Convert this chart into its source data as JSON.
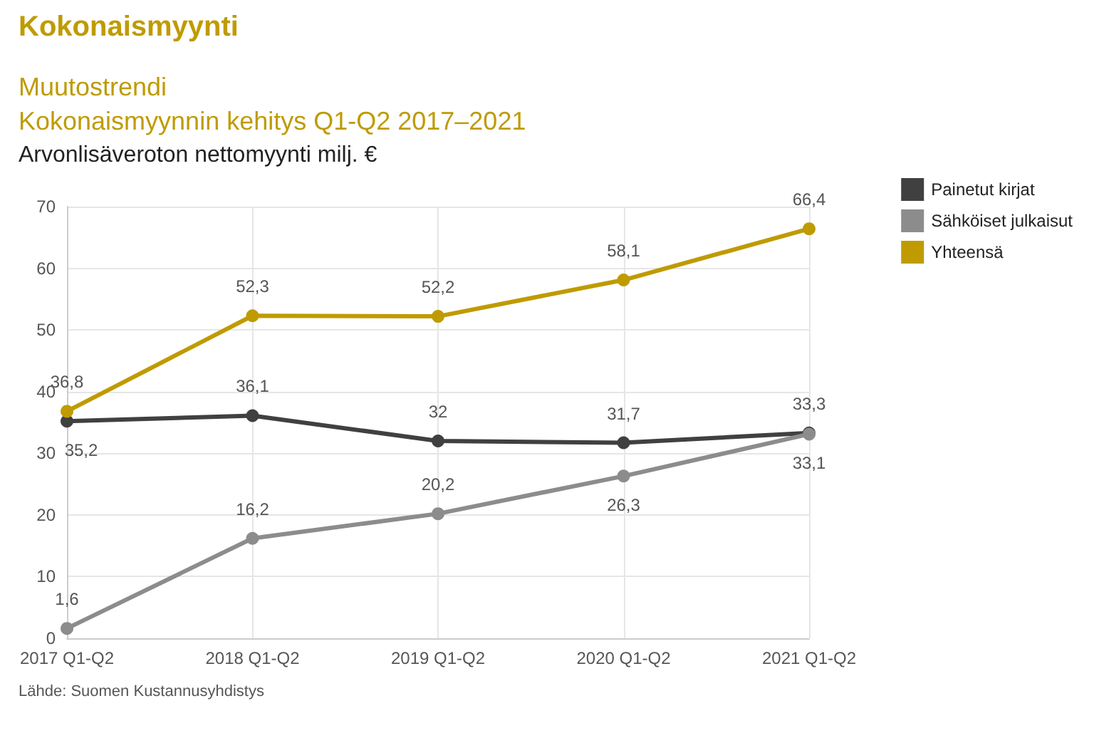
{
  "chart_data": {
    "type": "line",
    "title": "Kokonaismyynti",
    "subtitle": "Muutostrendi\nKokonaismyynnin kehitys Q1-Q2 2017–2021",
    "ylabel": "Arvonlisäveroton nettomyynti milj. €",
    "categories": [
      "2017 Q1-Q2",
      "2018 Q1-Q2",
      "2019 Q1-Q2",
      "2020 Q1-Q2",
      "2021 Q1-Q2"
    ],
    "series": [
      {
        "name": "Painetut kirjat",
        "color": "#404040",
        "values": [
          35.2,
          36.1,
          32,
          31.7,
          33.3
        ],
        "value_labels": [
          "35,2",
          "36,1",
          "32",
          "31,7",
          "33,3"
        ]
      },
      {
        "name": "Sähköiset julkaisut",
        "color": "#8c8c8c",
        "values": [
          1.6,
          16.2,
          20.2,
          26.3,
          33.1
        ],
        "value_labels": [
          "1,6",
          "16,2",
          "20,2",
          "26,3",
          "33,1"
        ]
      },
      {
        "name": "Yhteensä",
        "color": "#bf9b00",
        "values": [
          36.8,
          52.3,
          52.2,
          58.1,
          66.4
        ],
        "value_labels": [
          "36,8",
          "52,3",
          "52,2",
          "58,1",
          "66,4"
        ]
      }
    ],
    "ylim": [
      0,
      70
    ],
    "yticks": [
      0,
      10,
      20,
      30,
      40,
      50,
      60,
      70
    ],
    "grid": true,
    "legend": "top right",
    "marker": "circle",
    "line_style": "solid",
    "annotations": [
      "Lähde: Suomen Kustannusyhdistys"
    ]
  }
}
